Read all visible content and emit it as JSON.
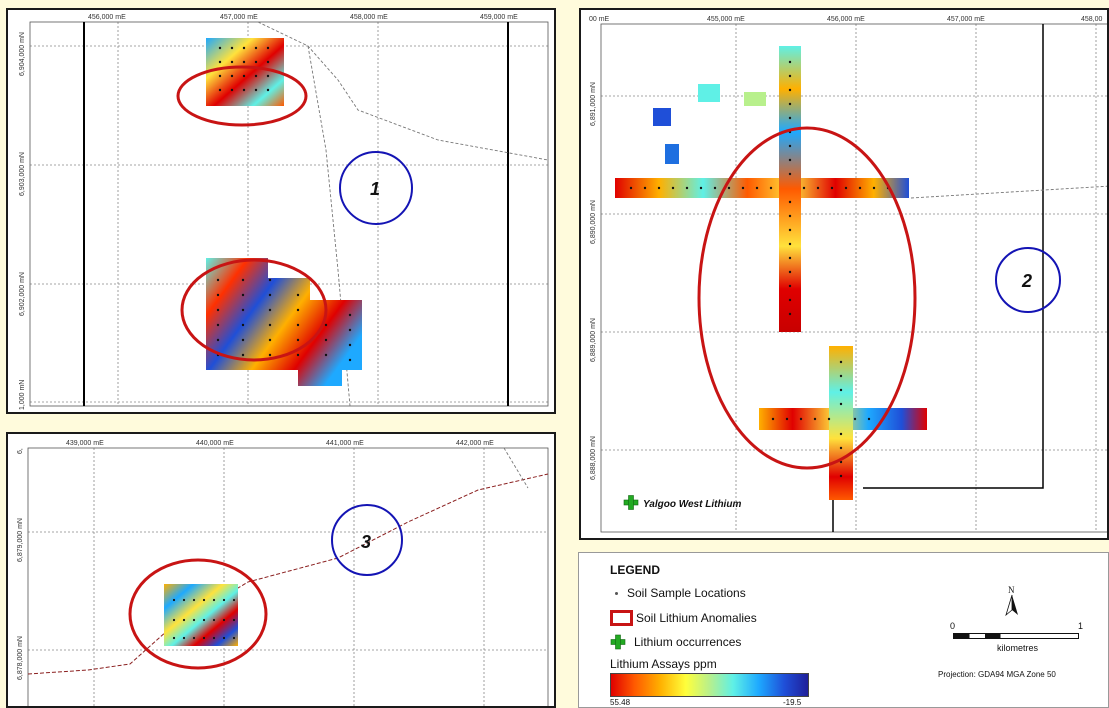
{
  "panels": {
    "panel1": {
      "easting_labels": [
        "456,000  mE",
        "457,000  mE",
        "458,000  mE",
        "459,000  mE"
      ],
      "northing_labels": [
        "6,904,000  mN",
        "6,903,000  mN",
        "6,902,000  mN",
        "1,000  mN"
      ],
      "circle_label": "1"
    },
    "panel2": {
      "easting_labels": [
        "00  mE",
        "455,000  mE",
        "456,000  mE",
        "457,000  mE",
        "458,00"
      ],
      "northing_labels": [
        "6,891,000  mN",
        "6,890,000  mN",
        "6,889,000  mN",
        "6,888,000  mN"
      ],
      "circle_label": "2",
      "occurrence_label": "Yalgoo West Lithium"
    },
    "panel3": {
      "easting_labels": [
        "439,000  mE",
        "440,000  mE",
        "441,000  mE",
        "442,000  mE"
      ],
      "northing_labels": [
        "6,879,000  mN",
        "6,878,000  mN",
        "6,"
      ],
      "circle_label": "3"
    }
  },
  "legend": {
    "title": "LEGEND",
    "soil_sample_locations": "Soil Sample Locations",
    "soil_lithium_anomalies": "Soil Lithium Anomalies",
    "lithium_occurrences": "Lithium occurrences",
    "assays_label": "Lithium Assays ppm",
    "scale_max": "55.48",
    "scale_min": "-19.5",
    "scale_bar": {
      "start": "0",
      "end": "1",
      "unit": "kilometres"
    },
    "north_label": "N",
    "projection": "Projection: GDA94 MGA Zone 50"
  },
  "colors": {
    "anomaly_ellipse": "#c81414",
    "target_circle": "#1414b4",
    "occurrence_cross": "#22aa22"
  }
}
